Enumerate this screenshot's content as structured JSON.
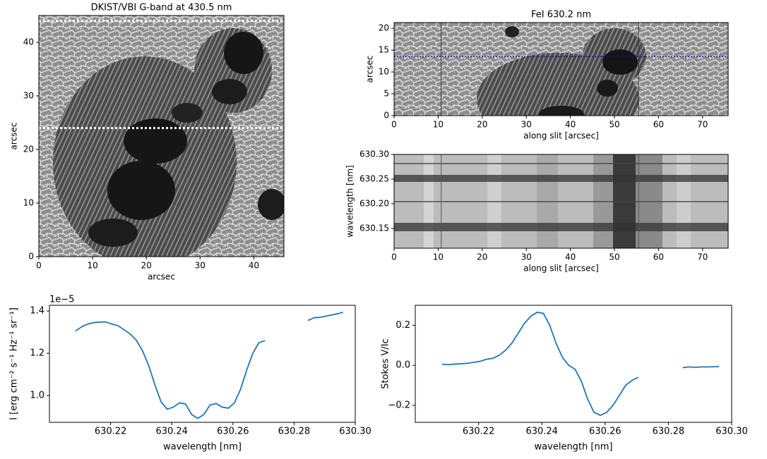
{
  "chart_data": [
    {
      "type": "image",
      "title": "DKIST/VBI G-band at 430.5 nm",
      "xlabel": "arcsec",
      "ylabel": "arcsec",
      "xlim": [
        0,
        45.6
      ],
      "ylim": [
        0,
        45
      ],
      "xticks": [
        0,
        10,
        20,
        30,
        40
      ],
      "yticks": [
        0,
        10,
        20,
        30,
        40
      ],
      "hlines": [
        44,
        24
      ],
      "hline_color": "#ffffff"
    },
    {
      "type": "image",
      "title": "FeI 630.2 nm",
      "xlabel": "along slit [arcsec]",
      "ylabel": "arcsec",
      "xlim": [
        0,
        75.8
      ],
      "ylim": [
        0,
        21.3
      ],
      "xticks": [
        0,
        10,
        20,
        30,
        40,
        50,
        60,
        70
      ],
      "yticks": [
        0,
        5,
        10,
        15,
        20
      ],
      "hlines": [
        13.5
      ],
      "hline_color": "#1010a0",
      "vlines": [
        10.7,
        55.5
      ],
      "vline_color": "#333333"
    },
    {
      "type": "image",
      "xlabel": "along slit [arcsec]",
      "ylabel": "wavelength [nm]",
      "xlim": [
        0,
        75.8
      ],
      "ylim": [
        630.11,
        630.3
      ],
      "xticks": [
        0,
        10,
        20,
        30,
        40,
        50,
        60,
        70
      ],
      "yticks": [
        630.15,
        {
          "value": 630.2,
          "label": "630.20"
        },
        630.25,
        {
          "value": 630.3,
          "label": "630.30"
        }
      ],
      "vlines": [
        10.7,
        55.5
      ],
      "vline_color": "#555555"
    },
    {
      "type": "line",
      "xlabel": "wavelength [nm]",
      "ylabel": "I [erg cm⁻² s⁻¹ Hz⁻¹ sr⁻¹]",
      "offset_label": "1e−5",
      "xlim": [
        630.2,
        630.3
      ],
      "ylim": [
        0.873,
        1.427
      ],
      "xticks": [
        630.22,
        630.24,
        630.26,
        630.28,
        {
          "value": 630.3,
          "label": "630.30"
        }
      ],
      "yticks": [
        {
          "value": 1,
          "label": "1.0"
        },
        1.2,
        1.4
      ],
      "color": "#1f77b4",
      "x": [
        630.2085,
        630.2105,
        630.2125,
        630.2145,
        630.2165,
        630.2185,
        630.2205,
        630.2225,
        630.2245,
        630.2265,
        630.2285,
        630.2305,
        630.2325,
        630.2345,
        630.2365,
        630.2385,
        630.2405,
        630.2425,
        630.2445,
        630.2465,
        630.2485,
        630.2505,
        630.2525,
        630.2545,
        630.2565,
        630.2585,
        630.2605,
        630.2625,
        630.2645,
        630.2665,
        630.2685,
        630.2705,
        630.2775,
        630.2845,
        630.2865,
        630.2885,
        630.2905,
        630.2925,
        630.2945,
        630.296
      ],
      "values": [
        1.305,
        1.325,
        1.338,
        1.345,
        1.348,
        1.348,
        1.338,
        1.33,
        1.31,
        1.29,
        1.26,
        1.21,
        1.14,
        1.05,
        0.97,
        0.935,
        0.945,
        0.965,
        0.96,
        0.91,
        0.892,
        0.91,
        0.955,
        0.962,
        0.945,
        0.94,
        0.965,
        1.03,
        1.12,
        1.2,
        1.25,
        1.26,
        null,
        1.355,
        1.368,
        1.37,
        1.376,
        1.382,
        1.388,
        1.394
      ]
    },
    {
      "type": "line",
      "xlabel": "wavelength [nm]",
      "ylabel": "Stokes V/Ic",
      "xlim": [
        630.2,
        630.3
      ],
      "ylim": [
        -0.285,
        0.3
      ],
      "xticks": [
        630.22,
        630.24,
        630.26,
        630.28,
        {
          "value": 630.3,
          "label": "630.30"
        }
      ],
      "yticks": [
        {
          "value": -0.2,
          "label": "−0.2"
        },
        {
          "value": 0,
          "label": "0.0"
        },
        0.2
      ],
      "color": "#1f77b4",
      "x": [
        630.2085,
        630.2105,
        630.2125,
        630.2145,
        630.2165,
        630.2185,
        630.2205,
        630.2225,
        630.2245,
        630.2265,
        630.2285,
        630.2305,
        630.2325,
        630.2345,
        630.2365,
        630.2385,
        630.2405,
        630.2425,
        630.2445,
        630.2465,
        630.2485,
        630.2505,
        630.2525,
        630.2545,
        630.2565,
        630.2585,
        630.2605,
        630.2625,
        630.2645,
        630.2665,
        630.2685,
        630.2705,
        630.2775,
        630.2845,
        630.2865,
        630.2885,
        630.2905,
        630.2925,
        630.2945,
        630.296
      ],
      "values": [
        0.005,
        0.004,
        0.006,
        0.008,
        0.01,
        0.015,
        0.02,
        0.03,
        0.035,
        0.05,
        0.075,
        0.11,
        0.16,
        0.21,
        0.245,
        0.265,
        0.26,
        0.2,
        0.11,
        0.04,
        0,
        -0.02,
        -0.08,
        -0.17,
        -0.235,
        -0.25,
        -0.235,
        -0.2,
        -0.15,
        -0.1,
        -0.075,
        -0.06,
        null,
        -0.012,
        -0.008,
        -0.01,
        -0.008,
        -0.008,
        -0.007,
        -0.006
      ]
    }
  ]
}
